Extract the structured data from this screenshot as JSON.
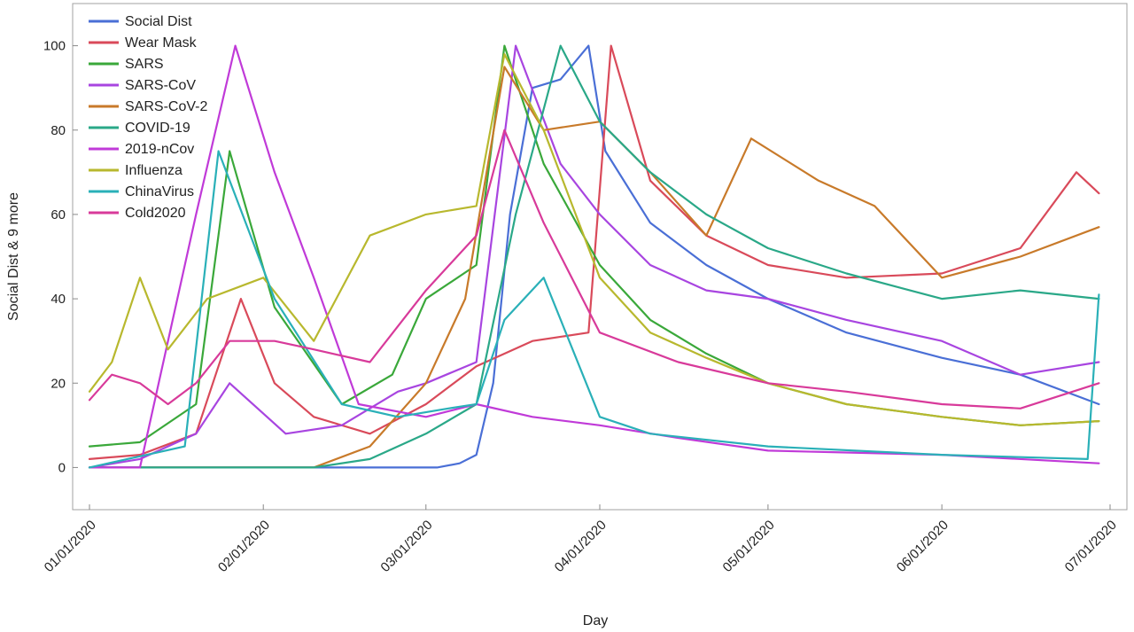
{
  "chart_data": {
    "type": "line",
    "xlabel": "Day",
    "ylabel": "Social Dist & 9 more",
    "ylim": [
      -10,
      110
    ],
    "xlim": [
      "2019-12-29",
      "2020-07-04"
    ],
    "yticks": [
      0,
      20,
      40,
      60,
      80,
      100
    ],
    "xticks": [
      "2020-01-01",
      "2020-02-01",
      "2020-03-01",
      "2020-04-01",
      "2020-05-01",
      "2020-06-01",
      "2020-07-01"
    ],
    "xtick_labels": [
      "01/01/2020",
      "02/01/2020",
      "03/01/2020",
      "04/01/2020",
      "05/01/2020",
      "06/01/2020",
      "07/01/2020"
    ],
    "grid": false,
    "legend_position": "top-left",
    "series": [
      {
        "name": "Social Dist",
        "color": "#4a6fd6",
        "x": [
          "2020-01-01",
          "2020-01-20",
          "2020-02-20",
          "2020-03-03",
          "2020-03-07",
          "2020-03-10",
          "2020-03-13",
          "2020-03-16",
          "2020-03-20",
          "2020-03-25",
          "2020-03-30",
          "2020-04-02",
          "2020-04-10",
          "2020-04-20",
          "2020-05-01",
          "2020-05-15",
          "2020-06-01",
          "2020-06-15",
          "2020-06-29"
        ],
        "y": [
          0,
          0,
          0,
          0,
          1,
          3,
          20,
          60,
          90,
          92,
          100,
          75,
          58,
          48,
          40,
          32,
          26,
          22,
          15
        ]
      },
      {
        "name": "Wear Mask",
        "color": "#d94a5a",
        "x": [
          "2020-01-01",
          "2020-01-10",
          "2020-01-20",
          "2020-01-28",
          "2020-02-03",
          "2020-02-10",
          "2020-02-20",
          "2020-03-01",
          "2020-03-10",
          "2020-03-20",
          "2020-03-30",
          "2020-04-03",
          "2020-04-10",
          "2020-04-20",
          "2020-05-01",
          "2020-05-15",
          "2020-06-01",
          "2020-06-15",
          "2020-06-25",
          "2020-06-29"
        ],
        "y": [
          2,
          3,
          8,
          40,
          20,
          12,
          8,
          15,
          24,
          30,
          32,
          100,
          68,
          55,
          48,
          45,
          46,
          52,
          70,
          65
        ]
      },
      {
        "name": "SARS",
        "color": "#3aa83a",
        "x": [
          "2020-01-01",
          "2020-01-10",
          "2020-01-20",
          "2020-01-26",
          "2020-02-03",
          "2020-02-15",
          "2020-02-24",
          "2020-03-01",
          "2020-03-10",
          "2020-03-15",
          "2020-03-22",
          "2020-04-01",
          "2020-04-10",
          "2020-04-20",
          "2020-05-01",
          "2020-05-15",
          "2020-06-01",
          "2020-06-15",
          "2020-06-29"
        ],
        "y": [
          5,
          6,
          15,
          75,
          38,
          15,
          22,
          40,
          48,
          100,
          72,
          48,
          35,
          27,
          20,
          15,
          12,
          10,
          11
        ]
      },
      {
        "name": "SARS-CoV",
        "color": "#a845e0",
        "x": [
          "2020-01-01",
          "2020-01-10",
          "2020-01-20",
          "2020-01-26",
          "2020-02-05",
          "2020-02-15",
          "2020-02-25",
          "2020-03-01",
          "2020-03-10",
          "2020-03-17",
          "2020-03-25",
          "2020-04-01",
          "2020-04-10",
          "2020-04-20",
          "2020-05-01",
          "2020-05-15",
          "2020-06-01",
          "2020-06-15",
          "2020-06-29"
        ],
        "y": [
          0,
          2,
          8,
          20,
          8,
          10,
          18,
          20,
          25,
          100,
          72,
          60,
          48,
          42,
          40,
          35,
          30,
          22,
          25
        ]
      },
      {
        "name": "SARS-CoV-2",
        "color": "#c87a2a",
        "x": [
          "2020-01-01",
          "2020-02-10",
          "2020-02-20",
          "2020-03-01",
          "2020-03-08",
          "2020-03-15",
          "2020-03-22",
          "2020-04-01",
          "2020-04-10",
          "2020-04-20",
          "2020-04-28",
          "2020-05-10",
          "2020-05-20",
          "2020-06-01",
          "2020-06-15",
          "2020-06-29"
        ],
        "y": [
          0,
          0,
          5,
          20,
          40,
          95,
          80,
          82,
          70,
          55,
          78,
          68,
          62,
          45,
          50,
          57
        ]
      },
      {
        "name": "COVID-19",
        "color": "#2aa888",
        "x": [
          "2020-01-01",
          "2020-02-10",
          "2020-02-20",
          "2020-03-01",
          "2020-03-10",
          "2020-03-17",
          "2020-03-25",
          "2020-04-01",
          "2020-04-10",
          "2020-04-20",
          "2020-05-01",
          "2020-05-15",
          "2020-06-01",
          "2020-06-15",
          "2020-06-29"
        ],
        "y": [
          0,
          0,
          2,
          8,
          15,
          60,
          100,
          82,
          70,
          60,
          52,
          46,
          40,
          42,
          40
        ]
      },
      {
        "name": "2019-nCov",
        "color": "#c03ad8",
        "x": [
          "2020-01-01",
          "2020-01-10",
          "2020-01-20",
          "2020-01-27",
          "2020-02-03",
          "2020-02-10",
          "2020-02-18",
          "2020-03-01",
          "2020-03-10",
          "2020-03-20",
          "2020-04-01",
          "2020-04-15",
          "2020-05-01",
          "2020-06-01",
          "2020-06-29"
        ],
        "y": [
          0,
          0,
          60,
          100,
          70,
          45,
          15,
          12,
          15,
          12,
          10,
          7,
          4,
          3,
          1
        ]
      },
      {
        "name": "Influenza",
        "color": "#b8b82e",
        "x": [
          "2020-01-01",
          "2020-01-05",
          "2020-01-10",
          "2020-01-15",
          "2020-01-22",
          "2020-02-01",
          "2020-02-10",
          "2020-02-20",
          "2020-03-01",
          "2020-03-10",
          "2020-03-15",
          "2020-03-22",
          "2020-04-01",
          "2020-04-10",
          "2020-04-20",
          "2020-05-01",
          "2020-05-15",
          "2020-06-01",
          "2020-06-15",
          "2020-06-29"
        ],
        "y": [
          18,
          25,
          45,
          28,
          40,
          45,
          30,
          55,
          60,
          62,
          98,
          80,
          45,
          32,
          26,
          20,
          15,
          12,
          10,
          11
        ]
      },
      {
        "name": "ChinaVirus",
        "color": "#2ab0b8",
        "x": [
          "2020-01-01",
          "2020-01-18",
          "2020-01-24",
          "2020-02-03",
          "2020-02-15",
          "2020-02-25",
          "2020-03-05",
          "2020-03-10",
          "2020-03-15",
          "2020-03-22",
          "2020-04-01",
          "2020-04-10",
          "2020-05-01",
          "2020-06-01",
          "2020-06-27",
          "2020-06-29"
        ],
        "y": [
          0,
          5,
          75,
          40,
          15,
          12,
          14,
          15,
          35,
          45,
          12,
          8,
          5,
          3,
          2,
          41
        ]
      },
      {
        "name": "Cold2020",
        "color": "#d83a9a",
        "x": [
          "2020-01-01",
          "2020-01-05",
          "2020-01-10",
          "2020-01-15",
          "2020-01-20",
          "2020-01-26",
          "2020-02-03",
          "2020-02-10",
          "2020-02-20",
          "2020-03-01",
          "2020-03-10",
          "2020-03-15",
          "2020-03-22",
          "2020-04-01",
          "2020-04-15",
          "2020-05-01",
          "2020-05-15",
          "2020-06-01",
          "2020-06-15",
          "2020-06-29"
        ],
        "y": [
          16,
          22,
          20,
          15,
          20,
          30,
          30,
          28,
          25,
          42,
          55,
          80,
          58,
          32,
          25,
          20,
          18,
          15,
          14,
          20
        ]
      }
    ]
  }
}
